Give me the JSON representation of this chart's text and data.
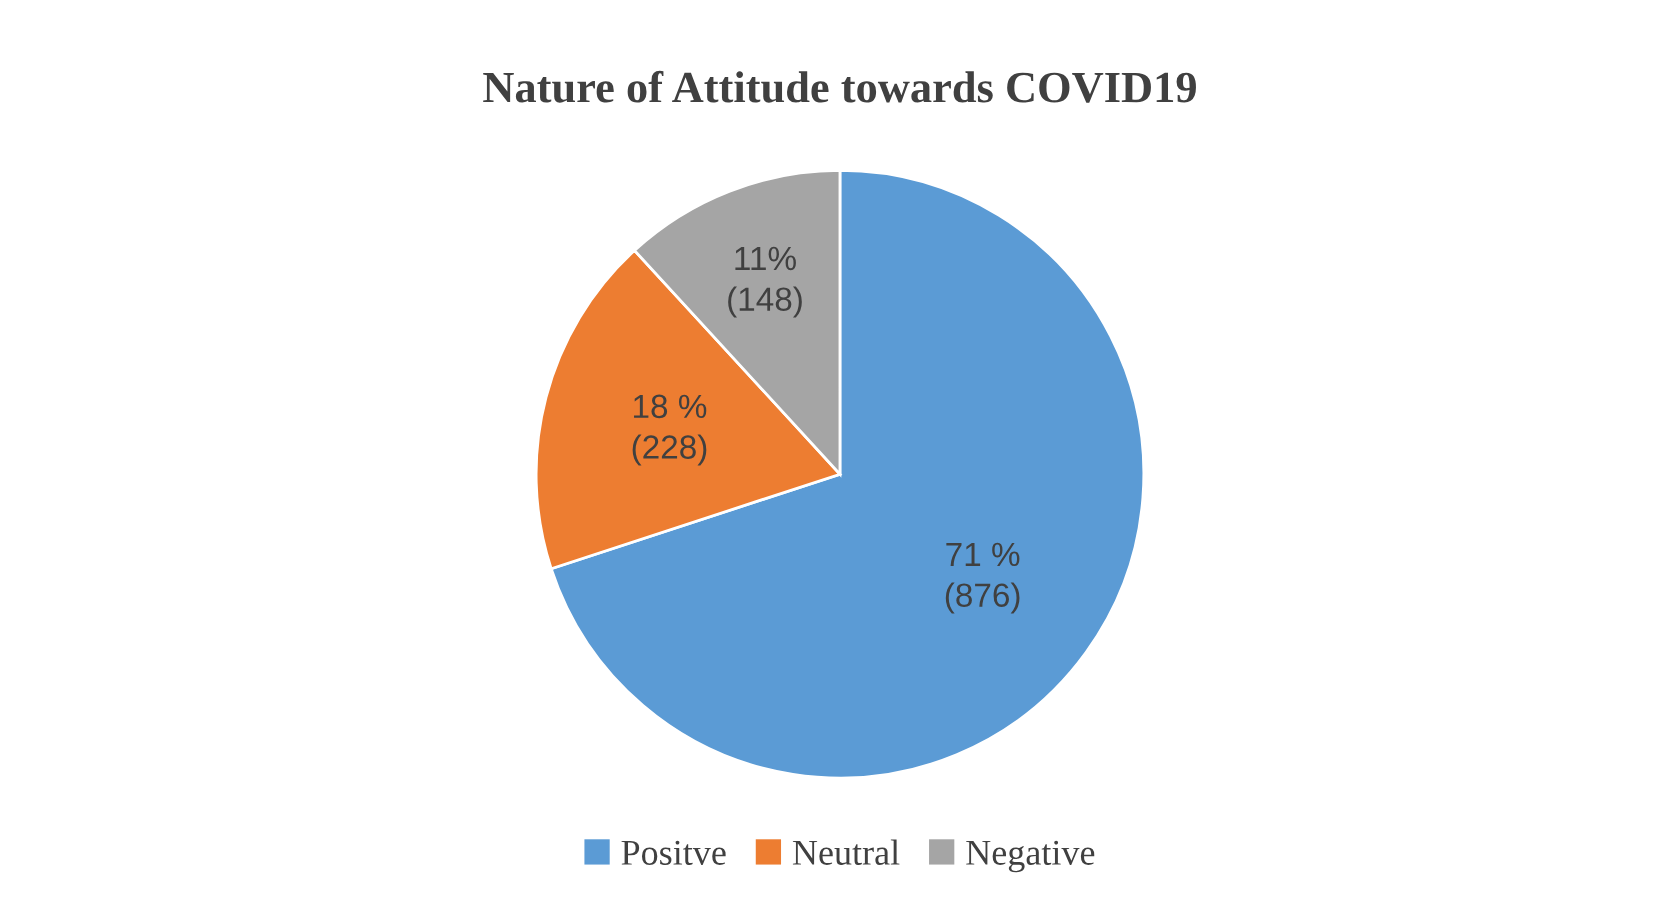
{
  "chart_data": {
    "type": "pie",
    "title": "Nature of Attitude towards COVID19",
    "categories": [
      "Positve",
      "Neutral",
      "Negative"
    ],
    "values": [
      876,
      228,
      148
    ],
    "value_labels": [
      "71 %\n(876)",
      "18 %\n(228)",
      "11%\n(148)"
    ],
    "colors": [
      "#5b9bd5",
      "#ed7d31",
      "#a5a5a5"
    ],
    "legend": "bottom"
  }
}
